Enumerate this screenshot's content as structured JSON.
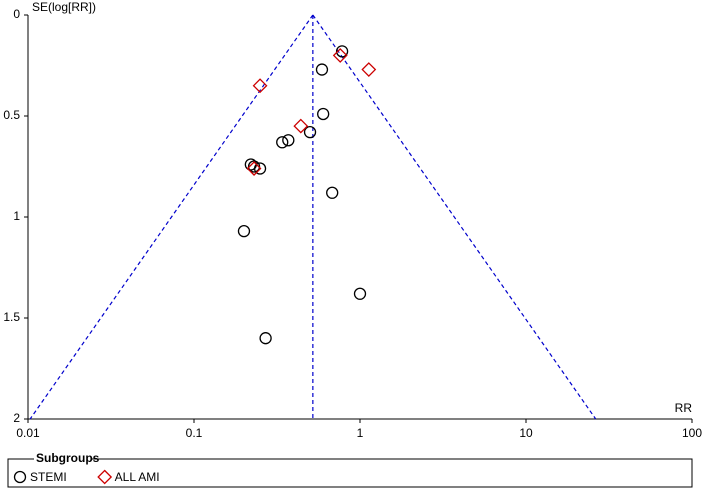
{
  "chart_data": {
    "type": "scatter",
    "x_label": "RR",
    "y_label": "SE(log[RR])",
    "xlim": [
      0.01,
      100
    ],
    "xticks": [
      0.01,
      0.1,
      1,
      10,
      100
    ],
    "xscale": "log",
    "ylim": [
      0,
      2
    ],
    "yticks": [
      0,
      0.5,
      1,
      1.5,
      2
    ],
    "y_reversed": true,
    "legend_title": "Subgroups",
    "legend_position": "bottom",
    "reference_line": {
      "x": [
        0.52,
        0.52
      ],
      "y": [
        0,
        2
      ],
      "color": "#0000cc"
    },
    "funnel_left": {
      "x": [
        0.52,
        0.0103
      ],
      "y": [
        0,
        2
      ],
      "color": "#0000cc"
    },
    "funnel_right": {
      "x": [
        0.52,
        26.3
      ],
      "y": [
        0,
        2
      ],
      "color": "#0000cc"
    },
    "series": [
      {
        "name": "STEMI",
        "color": "#000000",
        "marker": "circle",
        "x": [
          0.78,
          0.59,
          0.6,
          0.5,
          0.37,
          0.34,
          0.22,
          0.23,
          0.25,
          0.68,
          0.2,
          1.0,
          0.27
        ],
        "values": [
          0.18,
          0.27,
          0.49,
          0.58,
          0.62,
          0.63,
          0.74,
          0.75,
          0.76,
          0.88,
          1.07,
          1.38,
          1.6
        ]
      },
      {
        "name": "ALL AMI",
        "color": "#cc0000",
        "marker": "diamond",
        "x": [
          0.76,
          1.13,
          0.25,
          0.44,
          0.23
        ],
        "values": [
          0.2,
          0.27,
          0.35,
          0.55,
          0.76
        ]
      }
    ]
  }
}
